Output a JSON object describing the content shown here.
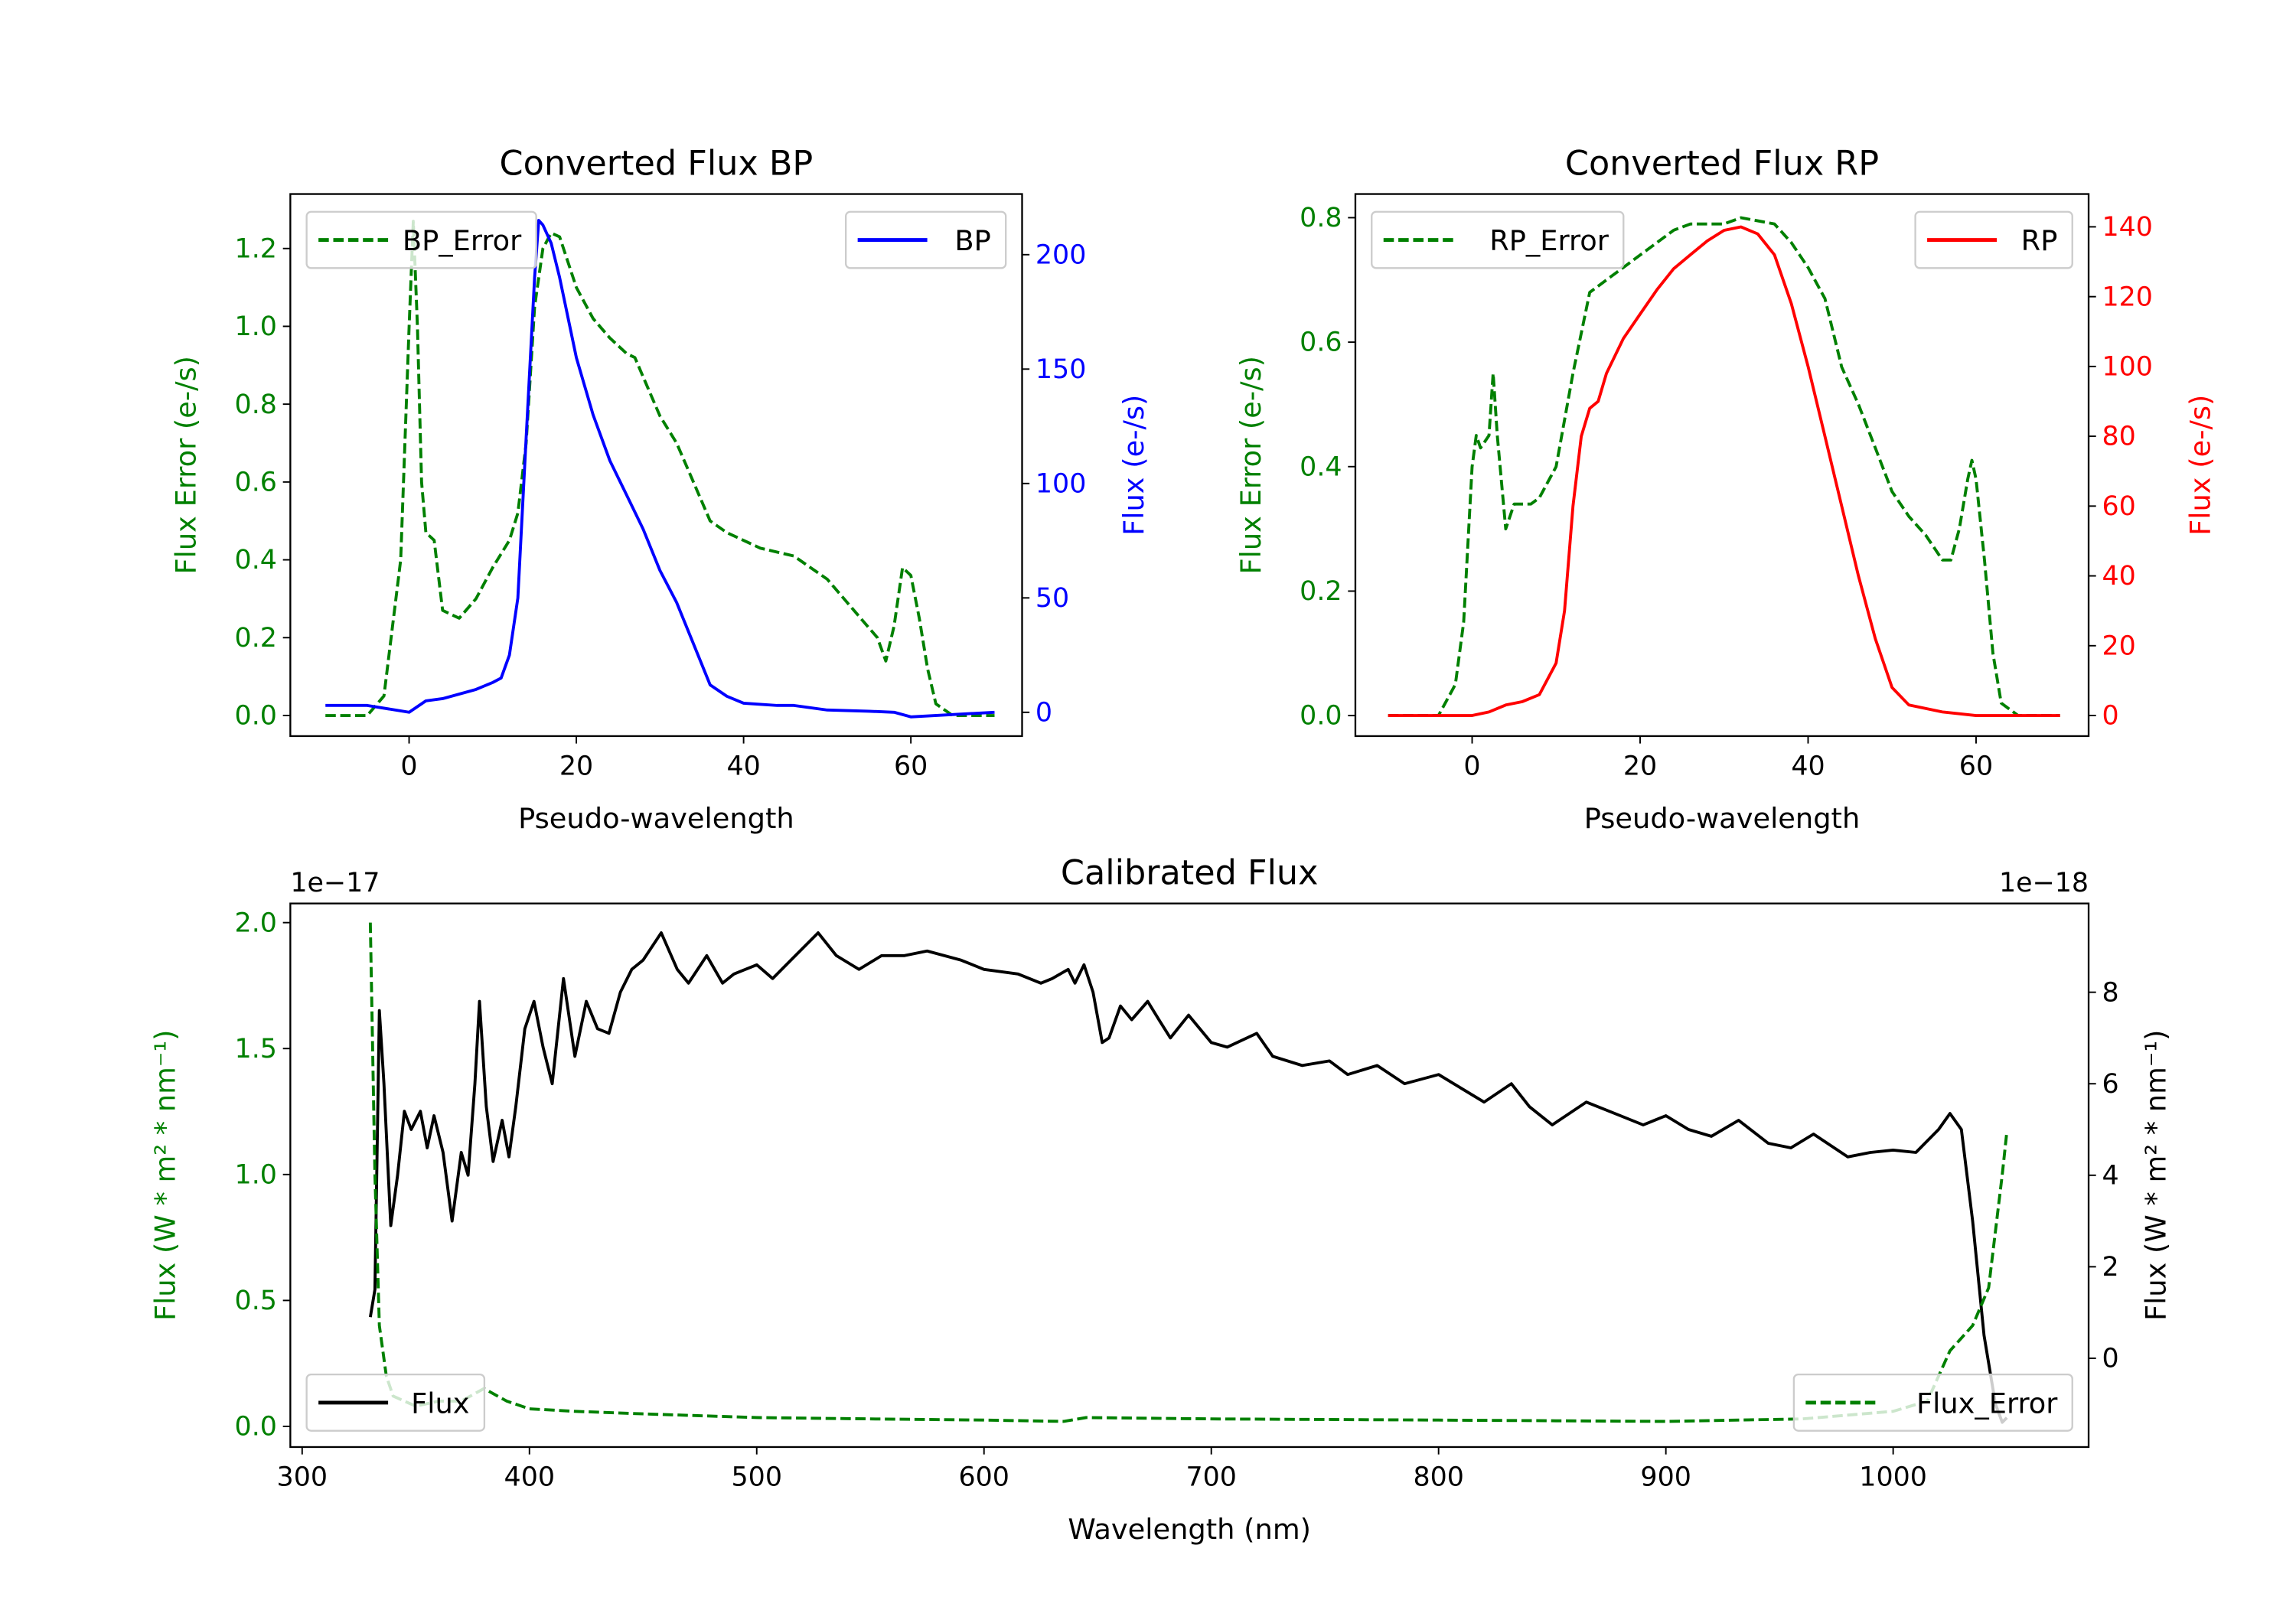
{
  "chart_data": [
    {
      "type": "line",
      "title": "Converted Flux BP",
      "xlabel": "Pseudo-wavelength",
      "ylabel_left": "Flux Error (e-/s)",
      "ylabel_right": "Flux (e-/s)",
      "left_color": "#008000",
      "right_color": "#0000ff",
      "xlim": [
        -14.2,
        73.3
      ],
      "ylim_left": [
        -0.053,
        1.34
      ],
      "ylim_right": [
        -10.4,
        226.5
      ],
      "xticks": [
        "0",
        "20",
        "40",
        "60"
      ],
      "yticks_left": [
        "0.0",
        "0.2",
        "0.4",
        "0.6",
        "0.8",
        "1.0",
        "1.2"
      ],
      "yticks_right": [
        "0",
        "50",
        "100",
        "150",
        "200"
      ],
      "offset_left": "",
      "offset_right": "",
      "series": [
        {
          "name": "BP_Error",
          "axis": "left",
          "color": "#008000",
          "style": "dashed",
          "legend": "upper left",
          "x": [
            -10,
            -5,
            -3,
            -1,
            0,
            0.5,
            1,
            1.5,
            2,
            3,
            4,
            5,
            6,
            8,
            10,
            12,
            13,
            14,
            15,
            16,
            17,
            18,
            20,
            22,
            24,
            26,
            27,
            28,
            30,
            32,
            34,
            36,
            38,
            42,
            46,
            50,
            54,
            56,
            57,
            58,
            59,
            60,
            61,
            62,
            63,
            65,
            70
          ],
          "y": [
            0,
            0,
            0.05,
            0.4,
            1.0,
            1.27,
            1.0,
            0.6,
            0.47,
            0.45,
            0.27,
            0.26,
            0.25,
            0.3,
            0.38,
            0.45,
            0.52,
            0.7,
            1.05,
            1.2,
            1.24,
            1.23,
            1.1,
            1.02,
            0.97,
            0.93,
            0.92,
            0.87,
            0.77,
            0.7,
            0.6,
            0.5,
            0.47,
            0.43,
            0.41,
            0.35,
            0.25,
            0.2,
            0.14,
            0.23,
            0.38,
            0.36,
            0.25,
            0.12,
            0.03,
            0,
            0
          ]
        },
        {
          "name": "BP",
          "axis": "right",
          "color": "#0000ff",
          "style": "solid",
          "legend": "upper right",
          "x": [
            -10,
            -5,
            0,
            2,
            4,
            8,
            10,
            11,
            12,
            13,
            14,
            15,
            15.5,
            16,
            17,
            18,
            20,
            22,
            24,
            26,
            28,
            30,
            32,
            34,
            36,
            38,
            40,
            44,
            46,
            50,
            55,
            58,
            60,
            70
          ],
          "y": [
            3,
            3,
            0,
            5,
            6,
            10,
            13,
            15,
            25,
            50,
            120,
            190,
            215,
            213,
            205,
            190,
            155,
            130,
            110,
            95,
            80,
            62,
            48,
            30,
            12,
            7,
            4,
            3,
            3,
            1,
            0.5,
            0,
            -2,
            0
          ]
        }
      ]
    },
    {
      "type": "line",
      "title": "Converted Flux RP",
      "xlabel": "Pseudo-wavelength",
      "ylabel_left": "Flux Error (e-/s)",
      "ylabel_right": "Flux (e-/s)",
      "left_color": "#008000",
      "right_color": "#ff0000",
      "xlim": [
        -13.9,
        73.4
      ],
      "ylim_left": [
        -0.033,
        0.838
      ],
      "ylim_right": [
        -5.9,
        149.4
      ],
      "xticks": [
        "0",
        "20",
        "40",
        "60"
      ],
      "yticks_left": [
        "0.0",
        "0.2",
        "0.4",
        "0.6",
        "0.8"
      ],
      "yticks_right": [
        "0",
        "20",
        "40",
        "60",
        "80",
        "100",
        "120",
        "140"
      ],
      "offset_left": "",
      "offset_right": "",
      "series": [
        {
          "name": "RP_Error",
          "axis": "left",
          "color": "#008000",
          "style": "dashed",
          "legend": "upper left",
          "x": [
            -10,
            -4,
            -2,
            -1,
            0,
            0.5,
            1,
            2,
            2.5,
            3,
            4,
            5,
            7,
            8,
            10,
            12,
            14,
            16,
            18,
            20,
            22,
            24,
            26,
            30,
            32,
            36,
            38,
            40,
            42,
            44,
            46,
            48,
            50,
            52,
            54,
            56,
            57,
            58,
            59,
            59.5,
            60,
            61,
            62,
            63,
            65,
            70
          ],
          "y": [
            0,
            0,
            0.05,
            0.15,
            0.4,
            0.45,
            0.43,
            0.45,
            0.55,
            0.45,
            0.3,
            0.34,
            0.34,
            0.35,
            0.4,
            0.55,
            0.68,
            0.7,
            0.72,
            0.74,
            0.76,
            0.78,
            0.79,
            0.79,
            0.8,
            0.79,
            0.76,
            0.72,
            0.67,
            0.56,
            0.5,
            0.43,
            0.36,
            0.32,
            0.29,
            0.25,
            0.25,
            0.3,
            0.38,
            0.41,
            0.38,
            0.25,
            0.1,
            0.02,
            0,
            0
          ]
        },
        {
          "name": "RP",
          "axis": "right",
          "color": "#ff0000",
          "style": "solid",
          "legend": "upper right",
          "x": [
            -10,
            0,
            2,
            4,
            6,
            8,
            10,
            11,
            12,
            13,
            14,
            15,
            16,
            18,
            20,
            22,
            24,
            26,
            28,
            30,
            32,
            34,
            36,
            38,
            40,
            42,
            44,
            46,
            48,
            50,
            52,
            56,
            60,
            70
          ],
          "y": [
            0,
            0,
            1,
            3,
            4,
            6,
            15,
            30,
            60,
            80,
            88,
            90,
            98,
            108,
            115,
            122,
            128,
            132,
            136,
            139,
            140,
            138,
            132,
            118,
            100,
            80,
            60,
            40,
            22,
            8,
            3,
            1,
            0,
            0
          ]
        }
      ]
    },
    {
      "type": "line",
      "title": "Calibrated Flux",
      "xlabel": "Wavelength (nm)",
      "ylabel_left": "Flux (W * m² * nm⁻¹)",
      "ylabel_right": "Flux (W * m² * nm⁻¹)",
      "left_color": "#008000",
      "right_color": "#000000",
      "xlim": [
        294.8,
        1086
      ],
      "ylim_left": [
        -0.082,
        2.076
      ],
      "ylim_right": [
        -1.94,
        9.94
      ],
      "xticks": [
        "300",
        "400",
        "500",
        "600",
        "700",
        "800",
        "900",
        "1000"
      ],
      "yticks_left": [
        "0.0",
        "0.5",
        "1.0",
        "1.5",
        "2.0"
      ],
      "yticks_right": [
        "0",
        "2",
        "4",
        "6",
        "8"
      ],
      "offset_left": "1e−17",
      "offset_right": "1e−18",
      "series": [
        {
          "name": "Flux",
          "axis": "right",
          "color": "#000000",
          "style": "solid",
          "legend": "lower left",
          "x": [
            330,
            332,
            334,
            336,
            339,
            342,
            345,
            348,
            352,
            355,
            358,
            362,
            366,
            370,
            373,
            376,
            378,
            381,
            384,
            388,
            391,
            394,
            398,
            402,
            406,
            410,
            415,
            420,
            425,
            430,
            435,
            440,
            445,
            450,
            458,
            465,
            470,
            478,
            485,
            490,
            500,
            507,
            515,
            527,
            535,
            545,
            555,
            565,
            575,
            590,
            600,
            615,
            625,
            630,
            637,
            640,
            644,
            648,
            652,
            655,
            660,
            665,
            672,
            677,
            682,
            690,
            700,
            707,
            720,
            727,
            740,
            752,
            760,
            773,
            785,
            800,
            810,
            820,
            832,
            840,
            850,
            865,
            880,
            890,
            900,
            910,
            920,
            932,
            945,
            955,
            965,
            980,
            990,
            1000,
            1010,
            1020,
            1025,
            1030,
            1035,
            1040,
            1045,
            1048,
            1050
          ],
          "y": [
            0.9,
            1.5,
            7.6,
            6,
            2.9,
            4,
            5.4,
            5.0,
            5.4,
            4.6,
            5.3,
            4.5,
            3.0,
            4.5,
            4.0,
            6,
            7.8,
            5.5,
            4.3,
            5.2,
            4.4,
            5.5,
            7.2,
            7.8,
            6.8,
            6.0,
            8.3,
            6.6,
            7.8,
            7.2,
            7.1,
            8.0,
            8.5,
            8.7,
            9.3,
            8.5,
            8.2,
            8.8,
            8.2,
            8.4,
            8.6,
            8.3,
            8.7,
            9.3,
            8.8,
            8.5,
            8.8,
            8.8,
            8.9,
            8.7,
            8.5,
            8.4,
            8.2,
            8.3,
            8.5,
            8.2,
            8.6,
            8.0,
            6.9,
            7.0,
            7.7,
            7.4,
            7.8,
            7.4,
            7.0,
            7.5,
            6.9,
            6.8,
            7.1,
            6.6,
            6.4,
            6.5,
            6.2,
            6.4,
            6.0,
            6.2,
            5.9,
            5.6,
            6.0,
            5.5,
            5.1,
            5.6,
            5.3,
            5.1,
            5.3,
            5.0,
            4.85,
            5.2,
            4.7,
            4.6,
            4.9,
            4.4,
            4.5,
            4.55,
            4.5,
            5.0,
            5.35,
            5.0,
            3.0,
            0.5,
            -1,
            -1.4,
            -1.3
          ]
        },
        {
          "name": "Flux_Error",
          "axis": "left",
          "color": "#008000",
          "style": "dashed",
          "legend": "lower right",
          "x": [
            330,
            332,
            334,
            337,
            340,
            345,
            350,
            360,
            370,
            380,
            390,
            400,
            420,
            450,
            500,
            550,
            600,
            635,
            645,
            700,
            800,
            900,
            960,
            1000,
            1015,
            1025,
            1035,
            1042,
            1048,
            1050
          ],
          "y": [
            2.0,
            1.0,
            0.4,
            0.2,
            0.12,
            0.1,
            0.08,
            0.1,
            0.1,
            0.15,
            0.1,
            0.07,
            0.06,
            0.05,
            0.035,
            0.03,
            0.025,
            0.02,
            0.035,
            0.03,
            0.025,
            0.02,
            0.03,
            0.06,
            0.1,
            0.3,
            0.4,
            0.55,
            1.0,
            1.17
          ]
        }
      ]
    }
  ]
}
